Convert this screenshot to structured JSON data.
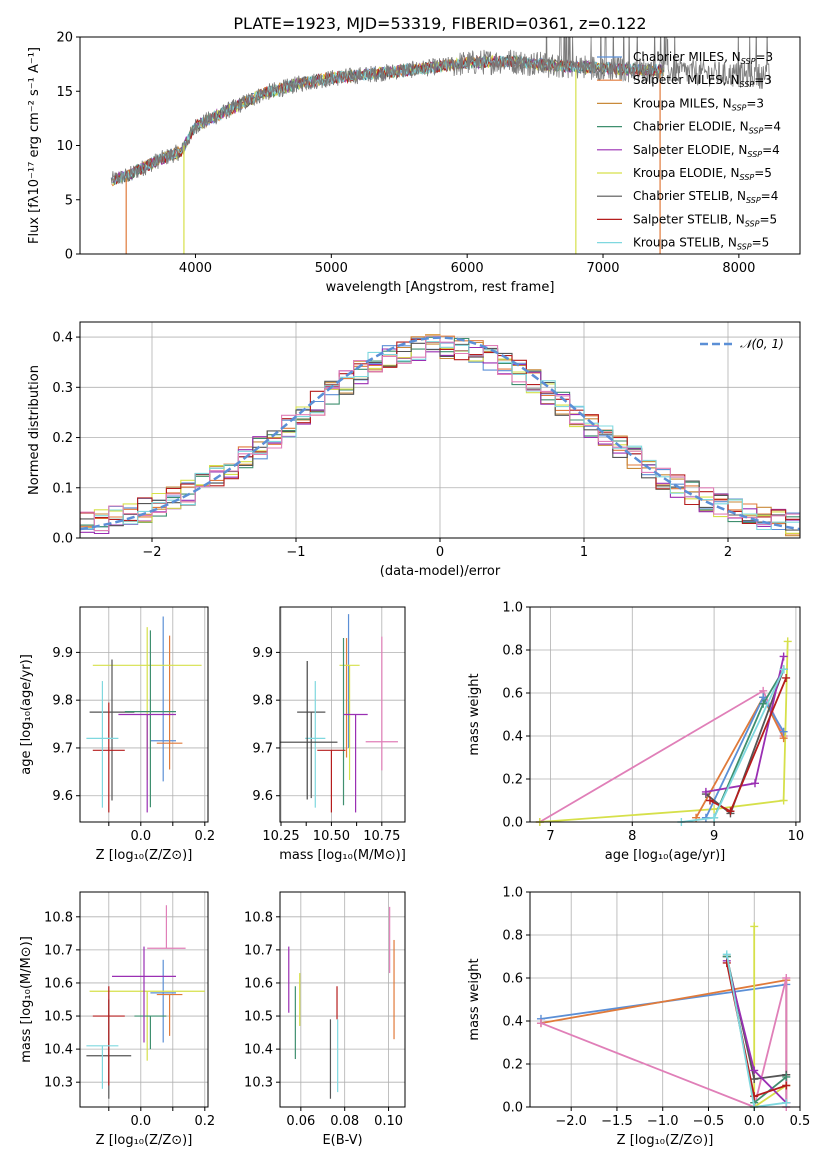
{
  "figure": {
    "title": "PLATE=1923, MJD=53319, FIBERID=0361, z=0.122"
  },
  "model_colors": {
    "Chabrier MILES": "#5b8fd6",
    "Salpeter MILES": "#e07a3a",
    "Kroupa MILES": "#c98a3a",
    "Chabrier ELODIE": "#3f8f6f",
    "Salpeter ELODIE": "#9a2fb3",
    "Kroupa ELODIE": "#d6e04a",
    "Chabrier STELIB": "#555555",
    "Salpeter STELIB": "#b51d1d",
    "Kroupa STELIB": "#7fd8df",
    "Pink series": "#e07fb8",
    "Gaussian curve": "#5b8fd6"
  },
  "chart_data": [
    {
      "id": "spectrum",
      "type": "line",
      "title": "PLATE=1923, MJD=53319, FIBERID=0361, z=0.122",
      "xlabel": "wavelength [Angstrom, rest frame]",
      "ylabel": "Flux [fλ10⁻¹⁷ erg cm⁻² s⁻¹ A⁻¹]",
      "xlim": [
        3150,
        8450
      ],
      "ylim": [
        0,
        20
      ],
      "xticks": [
        4000,
        5000,
        6000,
        7000,
        8000
      ],
      "yticks": [
        0,
        5,
        10,
        15,
        20
      ],
      "grid": false,
      "legend_position": "right",
      "legend": [
        {
          "label": "Chabrier MILES, N",
          "sub": "SSP",
          "suffix": "=3",
          "color": "#5b8fd6"
        },
        {
          "label": "Salpeter MILES, N",
          "sub": "SSP",
          "suffix": "=3",
          "color": "#e07a3a"
        },
        {
          "label": "Kroupa MILES, N",
          "sub": "SSP",
          "suffix": "=3",
          "color": "#c98a3a"
        },
        {
          "label": "Chabrier ELODIE, N",
          "sub": "SSP",
          "suffix": "=4",
          "color": "#3f8f6f"
        },
        {
          "label": "Salpeter ELODIE, N",
          "sub": "SSP",
          "suffix": "=4",
          "color": "#9a2fb3"
        },
        {
          "label": "Kroupa ELODIE, N",
          "sub": "SSP",
          "suffix": "=5",
          "color": "#d6e04a"
        },
        {
          "label": "Chabrier STELIB, N",
          "sub": "SSP",
          "suffix": "=4",
          "color": "#555555"
        },
        {
          "label": "Salpeter STELIB, N",
          "sub": "SSP",
          "suffix": "=5",
          "color": "#b51d1d"
        },
        {
          "label": "Kroupa STELIB, N",
          "sub": "SSP",
          "suffix": "=5",
          "color": "#7fd8df"
        }
      ],
      "continuum": {
        "x": [
          3380,
          3500,
          3700,
          3900,
          4000,
          4200,
          4500,
          4800,
          5000,
          5300,
          5600,
          6000,
          6300,
          6600,
          6900,
          7200,
          7500,
          7800,
          8200
        ],
        "y": [
          6.8,
          7.2,
          8.5,
          9.5,
          11.8,
          13.0,
          14.8,
          15.8,
          16.2,
          16.6,
          17.0,
          17.6,
          17.8,
          17.4,
          17.2,
          17.0,
          16.9,
          16.6,
          16.4
        ]
      },
      "dropouts": [
        {
          "color": "#e07a3a",
          "x": 3490,
          "y_from": 6.8,
          "y_to": 0
        },
        {
          "color": "#d6e04a",
          "x": 3915,
          "y_from": 10.0,
          "y_to": 0
        },
        {
          "color": "#d6e04a",
          "x": 6800,
          "y_from": 17.0,
          "y_to": 0
        },
        {
          "color": "#e07a3a",
          "x": 7420,
          "y_from": 16.8,
          "y_to": 0
        }
      ]
    },
    {
      "id": "residuals",
      "type": "histogram",
      "xlabel": "(data-model)/error",
      "ylabel": "Normed distribution",
      "xlim": [
        -2.5,
        2.5
      ],
      "ylim": [
        0,
        0.43
      ],
      "xticks": [
        -2,
        -1,
        0,
        1,
        2
      ],
      "yticks": [
        0.0,
        0.1,
        0.2,
        0.3,
        0.4
      ],
      "grid": true,
      "legend_position": "top-right",
      "gaussian_label": "𝒩(0, 1)",
      "bin_width": 0.1
    },
    {
      "id": "z_age",
      "type": "errorbar",
      "xlabel": "Z [log₁₀(Z/Z⊙)]",
      "ylabel": "age  [log₁₀(age/yr)]",
      "xlim": [
        -0.19,
        0.21
      ],
      "ylim": [
        9.545,
        9.995
      ],
      "xticks": [
        -0.1,
        0.0,
        0.1,
        0.2
      ],
      "xticklabels": [
        "",
        "0.0",
        "",
        "0.2"
      ],
      "yticks": [
        9.6,
        9.7,
        9.8,
        9.9
      ],
      "grid": true,
      "points": [
        {
          "color": "#5b8fd6",
          "x": 0.07,
          "xerr": 0.04,
          "y": 9.715,
          "yerr": [
            0.085,
            0.26
          ]
        },
        {
          "color": "#e07a3a",
          "x": 0.09,
          "xerr": 0.04,
          "y": 9.71,
          "yerr": [
            0.055,
            0.225
          ]
        },
        {
          "color": "#d6e04a",
          "x": 0.02,
          "xerr": 0.17,
          "y": 9.873,
          "yerr": [
            0.24,
            0.08
          ]
        },
        {
          "color": "#555555",
          "x": -0.09,
          "xerr": 0.07,
          "y": 9.775,
          "yerr": [
            0.185,
            0.11
          ]
        },
        {
          "color": "#3f8f6f",
          "x": 0.03,
          "xerr": 0.08,
          "y": 9.776,
          "yerr": [
            0.2,
            0.17
          ]
        },
        {
          "color": "#9a2fb3",
          "x": 0.02,
          "xerr": 0.09,
          "y": 9.77,
          "yerr": [
            0.205,
            0.0
          ]
        },
        {
          "color": "#b51d1d",
          "x": -0.1,
          "xerr": 0.05,
          "y": 9.695,
          "yerr": [
            0.13,
            0.1
          ]
        },
        {
          "color": "#7fd8df",
          "x": -0.12,
          "xerr": 0.05,
          "y": 9.72,
          "yerr": [
            0.145,
            0.12
          ]
        }
      ]
    },
    {
      "id": "mass_age",
      "type": "errorbar",
      "xlabel": "mass [log₁₀(M/M⊙)]",
      "ylabel": "",
      "xlim": [
        10.245,
        10.865
      ],
      "ylim": [
        9.545,
        9.995
      ],
      "xticks": [
        10.25,
        10.5,
        10.75
      ],
      "xticklabels": [
        "10.25",
        "10.50",
        "10.75"
      ],
      "extra_xticks": [
        10.375,
        10.625
      ],
      "yticks": [
        9.6,
        9.7,
        9.8,
        9.9
      ],
      "grid": true,
      "points": [
        {
          "color": "#5b8fd6",
          "x": 10.585,
          "xerr": 0.0,
          "y": 9.8,
          "yerr": [
            0.1,
            0.18
          ]
        },
        {
          "color": "#e07a3a",
          "x": 10.575,
          "xerr": 0.0,
          "y": 9.73,
          "yerr": [
            0.05,
            0.2
          ]
        },
        {
          "color": "#d6e04a",
          "x": 10.59,
          "xerr": 0.05,
          "y": 9.873,
          "yerr": [
            0.24,
            0.0
          ]
        },
        {
          "color": "#555555",
          "x": 10.4,
          "xerr": 0.07,
          "y": 9.775,
          "yerr": [
            0.18,
            0.0
          ]
        },
        {
          "color": "#3f8f6f",
          "x": 10.56,
          "xerr": 0.0,
          "y": 9.78,
          "yerr": [
            0.2,
            0.15
          ]
        },
        {
          "color": "#9a2fb3",
          "x": 10.62,
          "xerr": 0.06,
          "y": 9.77,
          "yerr": [
            0.205,
            0.0
          ]
        },
        {
          "color": "#b51d1d",
          "x": 10.5,
          "xerr": 0.07,
          "y": 9.695,
          "yerr": [
            0.13,
            0.0
          ]
        },
        {
          "color": "#7fd8df",
          "x": 10.42,
          "xerr": 0.05,
          "y": 9.72,
          "yerr": [
            0.145,
            0.12
          ]
        },
        {
          "color": "#444444",
          "x": 10.38,
          "xerr": 0.15,
          "y": 9.712,
          "yerr": [
            0.12,
            0.17
          ]
        },
        {
          "color": "#e07fb8",
          "x": 10.75,
          "xerr": 0.08,
          "y": 9.713,
          "yerr": [
            0.06,
            0.22
          ]
        }
      ]
    },
    {
      "id": "age_weight",
      "type": "line",
      "xlabel": "age  [log₁₀(age/yr)]",
      "ylabel": "mass weight",
      "xlim": [
        6.75,
        10.05
      ],
      "ylim": [
        0,
        1
      ],
      "xticks": [
        7,
        8,
        9,
        10
      ],
      "yticks": [
        0.0,
        0.2,
        0.4,
        0.6,
        0.8,
        1.0
      ],
      "grid": true,
      "series": [
        {
          "color": "#e07fb8",
          "x": [
            6.87,
            9.6,
            9.85
          ],
          "y": [
            0.0,
            0.61,
            0.4
          ]
        },
        {
          "color": "#d6e04a",
          "x": [
            6.87,
            9.0,
            9.85,
            9.9
          ],
          "y": [
            0.0,
            0.06,
            0.1,
            0.84
          ]
        },
        {
          "color": "#e07a3a",
          "x": [
            8.78,
            9.6,
            9.85
          ],
          "y": [
            0.02,
            0.58,
            0.39
          ]
        },
        {
          "color": "#5b8fd6",
          "x": [
            8.9,
            9.6,
            9.85
          ],
          "y": [
            0.02,
            0.58,
            0.42
          ]
        },
        {
          "color": "#555555",
          "x": [
            8.9,
            9.2,
            9.85
          ],
          "y": [
            0.13,
            0.04,
            0.71
          ]
        },
        {
          "color": "#3f8f6f",
          "x": [
            9.0,
            9.6,
            9.85
          ],
          "y": [
            0.02,
            0.55,
            0.71
          ]
        },
        {
          "color": "#9a2fb3",
          "x": [
            8.9,
            9.5,
            9.85
          ],
          "y": [
            0.14,
            0.18,
            0.77
          ]
        },
        {
          "color": "#b51d1d",
          "x": [
            8.95,
            9.2,
            9.88
          ],
          "y": [
            0.1,
            0.05,
            0.67
          ]
        },
        {
          "color": "#7fd8df",
          "x": [
            8.6,
            9.0,
            9.85
          ],
          "y": [
            0.0,
            0.02,
            0.71
          ]
        }
      ]
    },
    {
      "id": "z_mass",
      "type": "errorbar",
      "xlabel": "Z [log₁₀(Z/Z⊙)]",
      "ylabel": "mass [log₁₀(M/M⊙)]",
      "xlim": [
        -0.19,
        0.21
      ],
      "ylim": [
        10.225,
        10.875
      ],
      "xticks": [
        -0.1,
        0.0,
        0.1,
        0.2
      ],
      "xticklabels": [
        "",
        "0.0",
        "",
        "0.2"
      ],
      "yticks": [
        10.3,
        10.4,
        10.5,
        10.6,
        10.7,
        10.8
      ],
      "grid": true,
      "points": [
        {
          "color": "#5b8fd6",
          "x": 0.07,
          "xerr": 0.04,
          "y": 10.57,
          "yerr": [
            0.15,
            0.1
          ]
        },
        {
          "color": "#e07a3a",
          "x": 0.09,
          "xerr": 0.04,
          "y": 10.565,
          "yerr": [
            0.125,
            0.0
          ]
        },
        {
          "color": "#d6e04a",
          "x": 0.02,
          "xerr": 0.18,
          "y": 10.575,
          "yerr": [
            0.21,
            0.0
          ]
        },
        {
          "color": "#555555",
          "x": -0.1,
          "xerr": 0.07,
          "y": 10.38,
          "yerr": [
            0.13,
            0.17
          ]
        },
        {
          "color": "#3f8f6f",
          "x": 0.03,
          "xerr": 0.05,
          "y": 10.5,
          "yerr": [
            0.1,
            0.0
          ]
        },
        {
          "color": "#9a2fb3",
          "x": 0.01,
          "xerr": 0.1,
          "y": 10.62,
          "yerr": [
            0.2,
            0.09
          ]
        },
        {
          "color": "#b51d1d",
          "x": -0.1,
          "xerr": 0.05,
          "y": 10.5,
          "yerr": [
            0.21,
            0.09
          ]
        },
        {
          "color": "#7fd8df",
          "x": -0.12,
          "xerr": 0.05,
          "y": 10.41,
          "yerr": [
            0.13,
            0.0
          ]
        },
        {
          "color": "#e07fb8",
          "x": 0.08,
          "xerr": 0.06,
          "y": 10.705,
          "yerr": [
            0.0,
            0.13
          ]
        }
      ]
    },
    {
      "id": "ebv_mass",
      "type": "errorbar",
      "xlabel": "E(B-V)",
      "ylabel": "",
      "xlim": [
        0.0505,
        0.1075
      ],
      "ylim": [
        10.225,
        10.875
      ],
      "xticks": [
        0.06,
        0.08,
        0.1
      ],
      "xticklabels": [
        "0.06",
        "0.08",
        "0.10"
      ],
      "yticks": [
        10.3,
        10.4,
        10.5,
        10.6,
        10.7,
        10.8
      ],
      "grid": true,
      "points": [
        {
          "color": "#9a2fb3",
          "x": 0.0545,
          "y": 10.61,
          "yerr": [
            0.1,
            0.1
          ]
        },
        {
          "color": "#3f8f6f",
          "x": 0.0575,
          "y": 10.48,
          "yerr": [
            0.11,
            0.11
          ]
        },
        {
          "color": "#d6e04a",
          "x": 0.0595,
          "y": 10.55,
          "yerr": [
            0.08,
            0.08
          ]
        },
        {
          "color": "#555555",
          "x": 0.0735,
          "y": 10.37,
          "yerr": [
            0.12,
            0.12
          ]
        },
        {
          "color": "#b51d1d",
          "x": 0.0765,
          "y": 10.54,
          "yerr": [
            0.05,
            0.05
          ]
        },
        {
          "color": "#7fd8df",
          "x": 0.0768,
          "y": 10.38,
          "yerr": [
            0.11,
            0.11
          ]
        },
        {
          "color": "#e07fb8",
          "x": 0.1005,
          "y": 10.73,
          "yerr": [
            0.1,
            0.1
          ]
        },
        {
          "color": "#e07a3a",
          "x": 0.1025,
          "y": 10.58,
          "yerr": [
            0.15,
            0.15
          ]
        }
      ]
    },
    {
      "id": "z_weight",
      "type": "line",
      "xlabel": "Z [log₁₀(Z/Z⊙)]",
      "ylabel": "mass weight",
      "xlim": [
        -2.45,
        0.5
      ],
      "ylim": [
        0,
        1
      ],
      "xticks": [
        -2.0,
        -1.5,
        -1.0,
        -0.5,
        0.0,
        0.5
      ],
      "xticklabels": [
        "−2.0",
        "−1.5",
        "−1.0",
        "−0.5",
        "0.0",
        "0.5"
      ],
      "yticks": [
        0.0,
        0.2,
        0.4,
        0.6,
        0.8,
        1.0
      ],
      "grid": true,
      "series": [
        {
          "color": "#5b8fd6",
          "x": [
            -2.33,
            0.35,
            0.35
          ],
          "y": [
            0.41,
            0.57,
            0.02
          ]
        },
        {
          "color": "#e07a3a",
          "x": [
            -2.33,
            0.35,
            0.35
          ],
          "y": [
            0.39,
            0.59,
            0.02
          ]
        },
        {
          "color": "#e07fb8",
          "x": [
            -2.33,
            0.0,
            0.35,
            0.35
          ],
          "y": [
            0.39,
            0.0,
            0.6,
            0.0
          ]
        },
        {
          "color": "#d6e04a",
          "x": [
            0.0,
            0.0,
            0.35
          ],
          "y": [
            0.84,
            0.0,
            0.1
          ]
        },
        {
          "color": "#555555",
          "x": [
            -0.3,
            0.0,
            0.35
          ],
          "y": [
            0.7,
            0.13,
            0.15
          ]
        },
        {
          "color": "#3f8f6f",
          "x": [
            -0.3,
            0.0,
            0.35
          ],
          "y": [
            0.7,
            0.02,
            0.14
          ]
        },
        {
          "color": "#9a2fb3",
          "x": [
            -0.3,
            0.0,
            0.35
          ],
          "y": [
            0.68,
            0.17,
            0.02
          ]
        },
        {
          "color": "#b51d1d",
          "x": [
            -0.3,
            0.0,
            0.35
          ],
          "y": [
            0.67,
            0.05,
            0.1
          ]
        },
        {
          "color": "#7fd8df",
          "x": [
            -0.3,
            0.0,
            0.35
          ],
          "y": [
            0.71,
            0.0,
            0.02
          ]
        }
      ]
    }
  ]
}
